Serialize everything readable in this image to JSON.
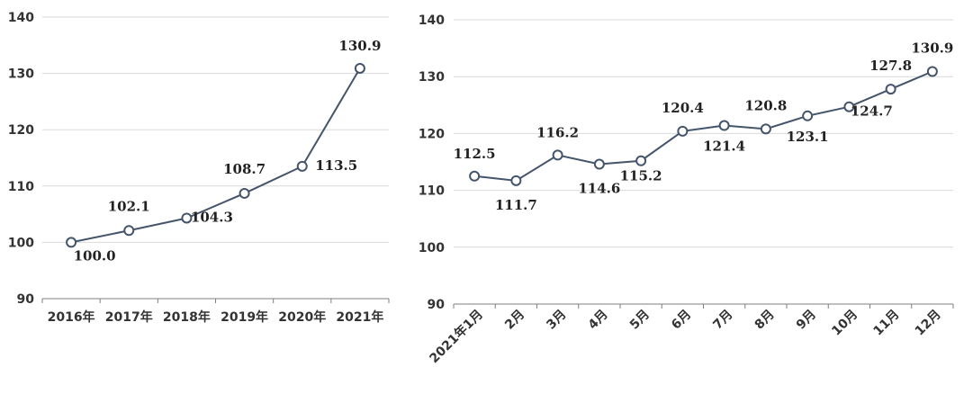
{
  "colors": {
    "line": "#44546a",
    "grid": "#d9d9d9",
    "axis": "#7f7f7f"
  },
  "chart_data": [
    {
      "type": "line",
      "title": "",
      "xlabel": "",
      "ylabel": "",
      "ylim": [
        90,
        140
      ],
      "yticks": [
        90,
        100,
        110,
        120,
        130,
        140
      ],
      "grid": true,
      "legend": "none",
      "categories": [
        "2016年",
        "2017年",
        "2018年",
        "2019年",
        "2020年",
        "2021年"
      ],
      "values": [
        100.0,
        102.1,
        104.3,
        108.7,
        113.5,
        130.9
      ],
      "data_labels": [
        "100.0",
        "102.1",
        "104.3",
        "108.7",
        "113.5",
        "130.9"
      ]
    },
    {
      "type": "line",
      "title": "",
      "xlabel": "",
      "ylabel": "",
      "ylim": [
        90,
        140
      ],
      "yticks": [
        90,
        100,
        110,
        120,
        130,
        140
      ],
      "grid": true,
      "legend": "none",
      "categories": [
        "2021年1月",
        "2月",
        "3月",
        "4月",
        "5月",
        "6月",
        "7月",
        "8月",
        "9月",
        "10月",
        "11月",
        "12月"
      ],
      "values": [
        112.5,
        111.7,
        116.2,
        114.6,
        115.2,
        120.4,
        121.4,
        120.8,
        123.1,
        124.7,
        127.8,
        130.9
      ],
      "data_labels": [
        "112.5",
        "111.7",
        "116.2",
        "114.6",
        "115.2",
        "120.4",
        "121.4",
        "120.8",
        "123.1",
        "124.7",
        "127.8",
        "130.9"
      ]
    }
  ]
}
